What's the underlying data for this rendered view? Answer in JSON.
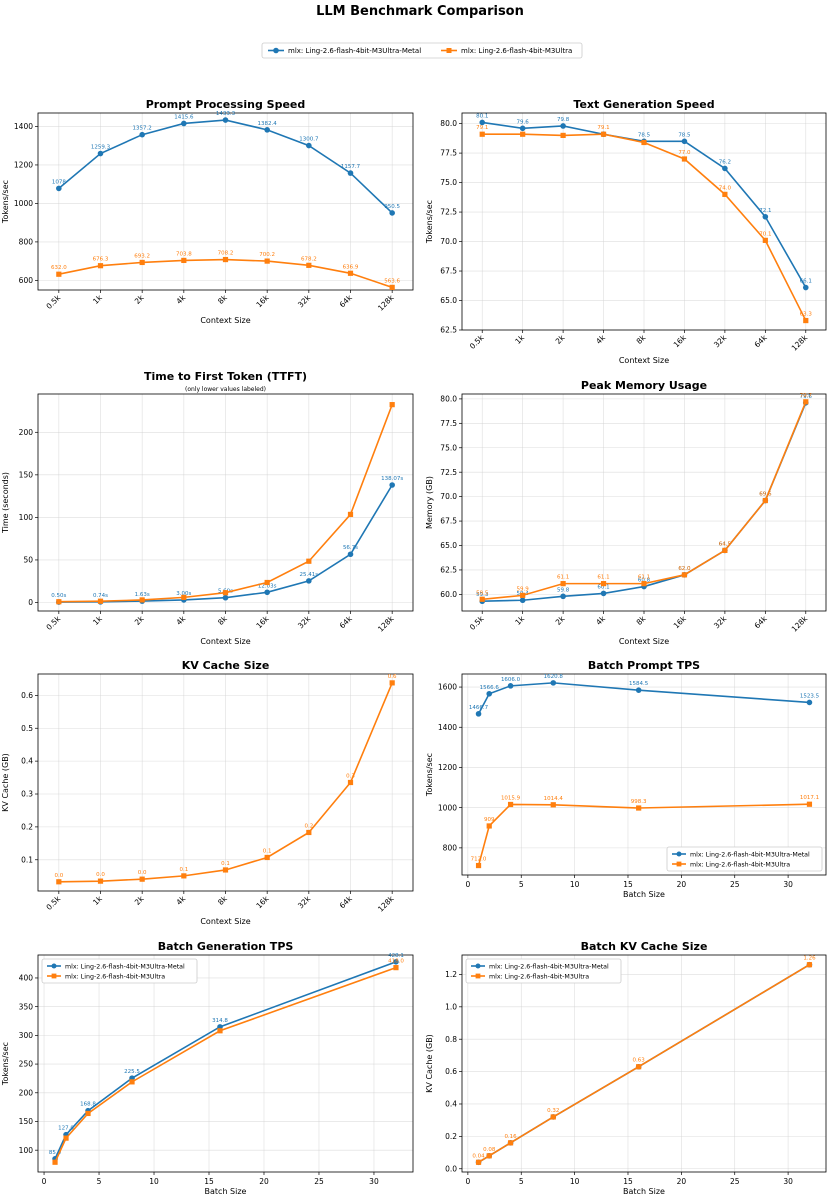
{
  "figure": {
    "title": "LLM Benchmark Comparison",
    "colors": {
      "metal": "#1f77b4",
      "base": "#ff7f0e"
    }
  },
  "legend": {
    "entries": [
      "mlx: Ling-2.6-flash-4bit-M3Ultra-Metal",
      "mlx: Ling-2.6-flash-4bit-M3Ultra"
    ]
  },
  "chart_data": [
    {
      "id": "pp",
      "type": "line",
      "title": "Prompt Processing Speed",
      "subtitle": "",
      "xlabel": "Context Size",
      "ylabel": "Tokens/sec",
      "categories": [
        "0.5k",
        "1k",
        "2k",
        "4k",
        "8k",
        "16k",
        "32k",
        "64k",
        "128k"
      ],
      "ylim": [
        550,
        1470
      ],
      "yticks": [
        600,
        800,
        1000,
        1200,
        1400
      ],
      "grid": true,
      "series": [
        {
          "name": "mlx: Ling-2.6-flash-4bit-M3Ultra-Metal",
          "values": [
            1078.0,
            1259.3,
            1357.2,
            1415.6,
            1433.3,
            1382.4,
            1300.7,
            1157.7,
            950.5
          ],
          "labels": [
            "1078",
            "1259.3",
            "1357.2",
            "1415.6",
            "1433.3",
            "1382.4",
            "1300.7",
            "1157.7",
            "950.5"
          ]
        },
        {
          "name": "mlx: Ling-2.6-flash-4bit-M3Ultra",
          "values": [
            632.0,
            676.3,
            693.2,
            703.8,
            708.2,
            700.2,
            678.2,
            636.9,
            563.6
          ],
          "labels": [
            "632.0",
            "676.3",
            "693.2",
            "703.8",
            "708.2",
            "700.2",
            "678.2",
            "636.9",
            "563.6"
          ]
        }
      ]
    },
    {
      "id": "tg",
      "type": "line",
      "title": "Text Generation Speed",
      "subtitle": "",
      "xlabel": "Context Size",
      "ylabel": "Tokens/sec",
      "categories": [
        "0.5k",
        "1k",
        "2k",
        "4k",
        "8k",
        "16k",
        "32k",
        "64k",
        "128k"
      ],
      "ylim": [
        62.5,
        80.9
      ],
      "yticks": [
        62.5,
        65.0,
        67.5,
        70.0,
        72.5,
        75.0,
        77.5,
        80.0
      ],
      "grid": true,
      "series": [
        {
          "name": "mlx: Ling-2.6-flash-4bit-M3Ultra-Metal",
          "values": [
            80.1,
            79.6,
            79.8,
            79.1,
            78.5,
            78.5,
            76.2,
            72.1,
            66.1
          ],
          "labels": [
            "80.1",
            "79.6",
            "79.8",
            "",
            "78.5",
            "78.5",
            "76.2",
            "72.1",
            "66.1"
          ]
        },
        {
          "name": "mlx: Ling-2.6-flash-4bit-M3Ultra",
          "values": [
            79.1,
            79.1,
            79.0,
            79.1,
            78.4,
            77.0,
            74.0,
            70.1,
            63.3
          ],
          "labels": [
            "79.1",
            "",
            "",
            "79.1",
            "",
            "77.0",
            "74.0",
            "70.1",
            "63.3"
          ]
        }
      ]
    },
    {
      "id": "ttft",
      "type": "line",
      "title": "Time to First Token (TTFT)",
      "subtitle": "(only lower values labeled)",
      "xlabel": "Context Size",
      "ylabel": "Time (seconds)",
      "categories": [
        "0.5k",
        "1k",
        "2k",
        "4k",
        "8k",
        "16k",
        "32k",
        "64k",
        "128k"
      ],
      "ylim": [
        -10,
        245
      ],
      "yticks": [
        0,
        50,
        100,
        150,
        200
      ],
      "grid": true,
      "series": [
        {
          "name": "mlx: Ling-2.6-flash-4bit-M3Ultra-Metal",
          "values": [
            0.5,
            0.74,
            1.63,
            3.0,
            5.6,
            12.0,
            25.41,
            56.7,
            138.07
          ],
          "labels": [
            "0.50s",
            "0.74s",
            "1.63s",
            "3.00s",
            "5.60s",
            "12.03s",
            "25.41s",
            "56.7s",
            "138.07s"
          ]
        },
        {
          "name": "mlx: Ling-2.6-flash-4bit-M3Ultra",
          "values": [
            0.9,
            1.5,
            3.0,
            6.0,
            11.5,
            23.5,
            48.5,
            103.5,
            232.5
          ],
          "labels": [
            "",
            "",
            "",
            "",
            "",
            "",
            "",
            "",
            ""
          ]
        }
      ]
    },
    {
      "id": "mem",
      "type": "line",
      "title": "Peak Memory Usage",
      "subtitle": "",
      "xlabel": "Context Size",
      "ylabel": "Memory (GB)",
      "categories": [
        "0.5k",
        "1k",
        "2k",
        "4k",
        "8k",
        "16k",
        "32k",
        "64k",
        "128k"
      ],
      "ylim": [
        58.3,
        80.5
      ],
      "yticks": [
        60.0,
        62.5,
        65.0,
        67.5,
        70.0,
        72.5,
        75.0,
        77.5,
        80.0
      ],
      "grid": true,
      "series": [
        {
          "name": "mlx: Ling-2.6-flash-4bit-M3Ultra-Metal",
          "values": [
            59.3,
            59.4,
            59.8,
            60.1,
            60.8,
            62.0,
            64.5,
            69.6,
            79.6
          ],
          "labels": [
            "59.3",
            "59.4",
            "59.8",
            "60.1",
            "60.8",
            "62.0",
            "64.5",
            "69.6",
            "79.6"
          ]
        },
        {
          "name": "mlx: Ling-2.6-flash-4bit-M3Ultra",
          "values": [
            59.5,
            59.9,
            61.1,
            61.1,
            61.1,
            62.0,
            64.5,
            69.6,
            79.7
          ],
          "labels": [
            "59.5",
            "59.9",
            "61.1",
            "61.1",
            "61.1",
            "62.0",
            "64.5",
            "69.6",
            "79.7"
          ]
        }
      ]
    },
    {
      "id": "kv",
      "type": "line",
      "title": "KV Cache Size",
      "subtitle": "",
      "xlabel": "Context Size",
      "ylabel": "KV Cache (GB)",
      "categories": [
        "0.5k",
        "1k",
        "2k",
        "4k",
        "8k",
        "16k",
        "32k",
        "64k",
        "128k"
      ],
      "ylim": [
        0.005,
        0.665
      ],
      "yticks": [
        0.1,
        0.2,
        0.3,
        0.4,
        0.5,
        0.6
      ],
      "grid": true,
      "series": [
        {
          "name": "mlx: Ling-2.6-flash-4bit-M3Ultra",
          "values": [
            0.033,
            0.035,
            0.041,
            0.051,
            0.069,
            0.107,
            0.183,
            0.335,
            0.638
          ],
          "labels": [
            "0.0",
            "0.0",
            "0.0",
            "0.1",
            "0.1",
            "0.1",
            "0.2",
            "0.3",
            "0.6"
          ]
        }
      ]
    },
    {
      "id": "bpp",
      "type": "line",
      "title": "Batch Prompt TPS",
      "subtitle": "",
      "xlabel": "Batch Size",
      "ylabel": "Tokens/sec",
      "x": [
        1,
        2,
        4,
        8,
        16,
        32
      ],
      "xlim": [
        -0.55,
        33.55
      ],
      "xticks": [
        0,
        5,
        10,
        15,
        20,
        25,
        30
      ],
      "ylim": [
        665,
        1665
      ],
      "yticks": [
        800,
        1000,
        1200,
        1400,
        1600
      ],
      "grid": true,
      "legend": "lower right",
      "series": [
        {
          "name": "mlx: Ling-2.6-flash-4bit-M3Ultra-Metal",
          "values": [
            1466.7,
            1566.6,
            1606.0,
            1620.8,
            1584.5,
            1523.5
          ],
          "labels": [
            "1466.7",
            "1566.6",
            "1606.0",
            "1620.8",
            "1584.5",
            "1523.5"
          ]
        },
        {
          "name": "mlx: Ling-2.6-flash-4bit-M3Ultra",
          "values": [
            712.0,
            909.0,
            1015.9,
            1014.4,
            998.3,
            1017.1
          ],
          "labels": [
            "712.0",
            "909",
            "1015.9",
            "1014.4",
            "998.3",
            "1017.1"
          ]
        }
      ]
    },
    {
      "id": "bgen",
      "type": "line",
      "title": "Batch Generation TPS",
      "subtitle": "",
      "xlabel": "Batch Size",
      "ylabel": "Tokens/sec",
      "x": [
        1,
        2,
        4,
        8,
        16,
        32
      ],
      "xlim": [
        -0.55,
        33.55
      ],
      "xticks": [
        0,
        5,
        10,
        15,
        20,
        25,
        30
      ],
      "ylim": [
        62,
        440
      ],
      "yticks": [
        100,
        150,
        200,
        250,
        300,
        350,
        400
      ],
      "grid": true,
      "legend": "upper left",
      "series": [
        {
          "name": "mlx: Ling-2.6-flash-4bit-M3Ultra-Metal",
          "values": [
            85.0,
            127.0,
            168.8,
            225.5,
            314.8,
            428.1
          ],
          "labels": [
            "85.0",
            "127.0",
            "168.8",
            "225.5",
            "314.8",
            "428.1"
          ]
        },
        {
          "name": "mlx: Ling-2.6-flash-4bit-M3Ultra",
          "values": [
            79.0,
            121.0,
            164.0,
            219.0,
            308.0,
            418.0
          ],
          "labels": [
            "",
            "",
            "",
            "",
            "",
            "418.0"
          ]
        }
      ]
    },
    {
      "id": "bkv",
      "type": "line",
      "title": "Batch KV Cache Size",
      "subtitle": "",
      "xlabel": "Batch Size",
      "ylabel": "KV Cache (GB)",
      "x": [
        1,
        2,
        4,
        8,
        16,
        32
      ],
      "xlim": [
        -0.55,
        33.55
      ],
      "xticks": [
        0,
        5,
        10,
        15,
        20,
        25,
        30
      ],
      "ylim": [
        -0.02,
        1.32
      ],
      "yticks": [
        0.0,
        0.2,
        0.4,
        0.6,
        0.8,
        1.0,
        1.2
      ],
      "grid": true,
      "legend": "upper left",
      "series": [
        {
          "name": "mlx: Ling-2.6-flash-4bit-M3Ultra-Metal",
          "values": [
            0.04,
            0.08,
            0.16,
            0.32,
            0.63,
            1.26
          ],
          "labels": [
            "",
            "",
            "",
            "",
            "",
            ""
          ]
        },
        {
          "name": "mlx: Ling-2.6-flash-4bit-M3Ultra",
          "values": [
            0.04,
            0.08,
            0.16,
            0.32,
            0.63,
            1.26
          ],
          "labels": [
            "0.04",
            "0.08",
            "0.16",
            "0.32",
            "0.63",
            "1.26"
          ]
        }
      ]
    }
  ]
}
